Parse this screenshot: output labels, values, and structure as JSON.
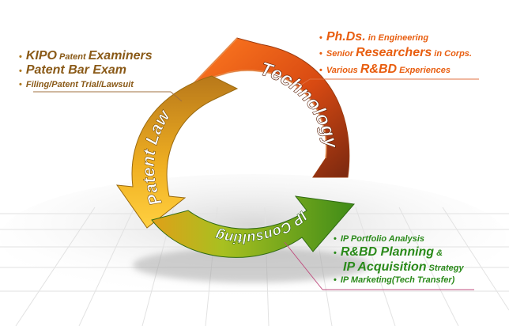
{
  "segments": {
    "technology": "Technology",
    "patent_law": "Patent Law",
    "ip_consulting": "IP Consulting"
  },
  "patent_law_list": {
    "item1": {
      "big1": "KIPO",
      "small": " Patent ",
      "big2": "Examiners"
    },
    "item2": {
      "big": "Patent Bar Exam"
    },
    "item3": {
      "text": "Filing/Patent Trial/Lawsuit"
    }
  },
  "technology_list": {
    "item1": {
      "big": "Ph.Ds.",
      "small": " in Engineering"
    },
    "item2": {
      "small1": "Senior ",
      "big": "Researchers",
      "small2": " in Corps."
    },
    "item3": {
      "small": "Various ",
      "big": "R&BD",
      "small2": " Experiences"
    }
  },
  "ip_list": {
    "item1": {
      "text": "IP Portfolio Analysis"
    },
    "item2": {
      "big": "R&BD Planning",
      "small": " &"
    },
    "item3": {
      "big": "IP Acquisition",
      "small": " Strategy"
    },
    "item4": {
      "text": "IP Marketing(Tech Transfer)"
    }
  },
  "colors": {
    "technology": "#e6601a",
    "technology_dark": "#8a2a10",
    "patent_law": "#f0b020",
    "patent_law_dark": "#a06a10",
    "ip_consulting": "#8cc828",
    "ip_consulting_dark": "#3a7a18",
    "list_brown": "#8a5a18",
    "list_orange": "#e85e10",
    "list_green": "#2a8a1a"
  },
  "bullet": "•"
}
